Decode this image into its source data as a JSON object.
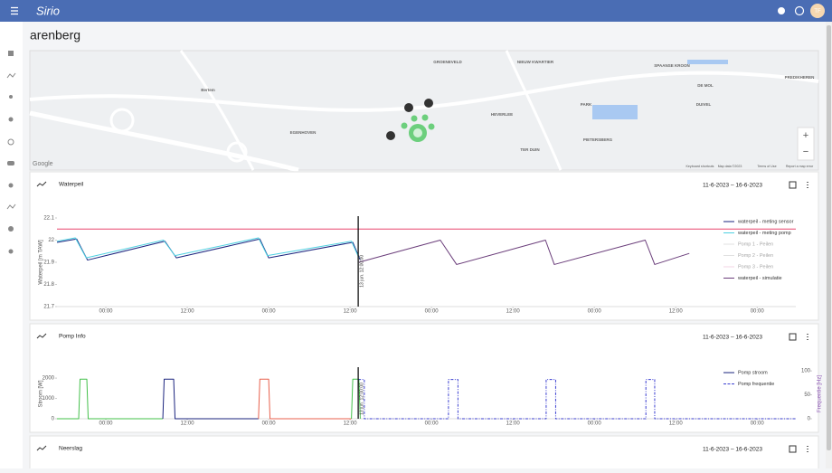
{
  "header": {
    "logo": "Sirio",
    "avatar": "TF"
  },
  "page_title": "arenberg",
  "map": {
    "labels": [
      "GROENEVELD",
      "NIEUW KWARTIER",
      "SPAANSE KROON",
      "DE MOL",
      "PREDIKHEREN",
      "Bertem",
      "HEVERLEE",
      "PARK",
      "DUIVEL",
      "EGENHOVEN",
      "PIETERSBERG",
      "TER DUIN"
    ],
    "zoom_in": "+",
    "zoom_out": "−",
    "brand": "Google",
    "attribution": [
      "Keyboard shortcuts",
      "Map data ©2023",
      "Terms of Use",
      "Report a map error"
    ]
  },
  "cards": [
    {
      "title": "Waterpeil",
      "date_range": "11-6-2023 – 16-6-2023",
      "chart": {
        "type": "line",
        "y_label": "Waterpeil [m TAW]",
        "xlim": [
          -7.2,
          101.7
        ],
        "ylim": [
          21.7,
          22.1
        ],
        "yticks": [
          21.7,
          21.8,
          21.9,
          22,
          22.1
        ],
        "xticks": [
          {
            "value": 0,
            "label": "00:00"
          },
          {
            "value": 12,
            "label": "12:00"
          },
          {
            "value": 24,
            "label": "00:00"
          },
          {
            "value": 36,
            "label": "12:00"
          },
          {
            "value": 48,
            "label": "00:00"
          },
          {
            "value": 60,
            "label": "12:00"
          },
          {
            "value": 72,
            "label": "00:00"
          },
          {
            "value": 84,
            "label": "12:00"
          },
          {
            "value": 96,
            "label": "00:00"
          }
        ],
        "marker": {
          "x": 37.2,
          "label": "13 jun. 12:00:00"
        },
        "reference_line": {
          "value": 22.05,
          "color": "#e9436b"
        },
        "series": [
          {
            "name": "waterpeil - meting sensor",
            "color": "#1a237e",
            "visible": true,
            "x": [
              -7.2,
              -4.3,
              -2.7,
              8.7,
              10.4,
              22.7,
              24.0,
              36.4,
              37.5
            ],
            "values": [
              21.99,
              22.005,
              21.91,
              21.995,
              21.92,
              22.005,
              21.92,
              21.99,
              21.91
            ]
          },
          {
            "name": "waterpeil - meting pomp",
            "color": "#4dd0e1",
            "visible": true,
            "x": [
              -7.2,
              -4.5,
              -2.9,
              8.5,
              10.2,
              22.5,
              23.8,
              36.2,
              37.3
            ],
            "values": [
              21.995,
              22.01,
              21.92,
              22.0,
              21.93,
              22.01,
              21.93,
              21.995,
              21.92
            ]
          },
          {
            "name": "Pomp 1 - Peilen",
            "color": "#bdbdbd",
            "visible": false
          },
          {
            "name": "Pomp 2 - Peilen",
            "color": "#bdbdbd",
            "visible": false
          },
          {
            "name": "Pomp 3 - Peilen",
            "color": "#e6a3c8",
            "visible": false
          },
          {
            "name": "waterpeil - simulatie",
            "color": "#6a3d7a",
            "visible": true,
            "x": [
              37.3,
              49.3,
              51.7,
              64.8,
              66.1,
              79.5,
              80.9,
              86.0
            ],
            "values": [
              21.9,
              22.0,
              21.89,
              22.0,
              21.89,
              22.0,
              21.89,
              21.94
            ]
          }
        ]
      }
    },
    {
      "title": "Pomp Info",
      "date_range": "11-6-2023 – 16-6-2023",
      "chart": {
        "type": "line",
        "y_label": "Stroom [W]",
        "y2_label": "Frequentie [Hz]",
        "xlim": [
          -7.2,
          101.7
        ],
        "ylim": [
          0,
          2450
        ],
        "yticks": [
          0,
          1000,
          2000
        ],
        "y2lim": [
          0,
          104
        ],
        "y2ticks": [
          0,
          50,
          100
        ],
        "xticks": [
          {
            "value": 0,
            "label": "00:00"
          },
          {
            "value": 12,
            "label": "12:00"
          },
          {
            "value": 24,
            "label": "00:00"
          },
          {
            "value": 36,
            "label": "12:00"
          },
          {
            "value": 48,
            "label": "00:00"
          },
          {
            "value": 60,
            "label": "12:00"
          },
          {
            "value": 72,
            "label": "00:00"
          },
          {
            "value": 84,
            "label": "12:00"
          },
          {
            "value": 96,
            "label": "00:00"
          }
        ],
        "marker": {
          "x": 37.2,
          "label": "13 jun. 12:00:00"
        },
        "series": [
          {
            "name": "Pomp stroom",
            "color": "#1a237e",
            "visible": true,
            "pieces": [
              {
                "color": "#43c04a",
                "x": [
                  -7.2,
                  -4.0,
                  -3.8,
                  -2.8,
                  -2.6,
                  8.4
                ],
                "values": [
                  0,
                  0,
                  1950,
                  1950,
                  0,
                  0
                ]
              },
              {
                "color": "#1a237e",
                "x": [
                  8.4,
                  8.6,
                  10.0,
                  10.2,
                  22.5
                ],
                "values": [
                  0,
                  1950,
                  1950,
                  0,
                  0
                ]
              },
              {
                "color": "#e8604c",
                "x": [
                  22.5,
                  22.7,
                  24.0,
                  24.2,
                  36.2
                ],
                "values": [
                  0,
                  1950,
                  1950,
                  0,
                  0
                ]
              },
              {
                "color": "#43c04a",
                "x": [
                  36.2,
                  36.4,
                  37.3,
                  37.5
                ],
                "values": [
                  0,
                  1950,
                  1950,
                  0
                ]
              }
            ]
          },
          {
            "name": "Pomp frequentie",
            "color": "#3b3fd1",
            "visible": true,
            "axis": "y2",
            "dash": true,
            "x": [
              37.2,
              38.1,
              38.1,
              50.5,
              50.5,
              51.9,
              51.9,
              64.9,
              64.9,
              66.3,
              66.3,
              79.6,
              79.6,
              80.9,
              80.9,
              101.7
            ],
            "values": [
              82,
              82,
              0,
              0,
              82,
              82,
              0,
              0,
              82,
              82,
              0,
              0,
              82,
              82,
              0,
              0
            ]
          }
        ]
      }
    },
    {
      "title": "Neerslag",
      "date_range": "11-6-2023 – 16-6-2023"
    }
  ]
}
